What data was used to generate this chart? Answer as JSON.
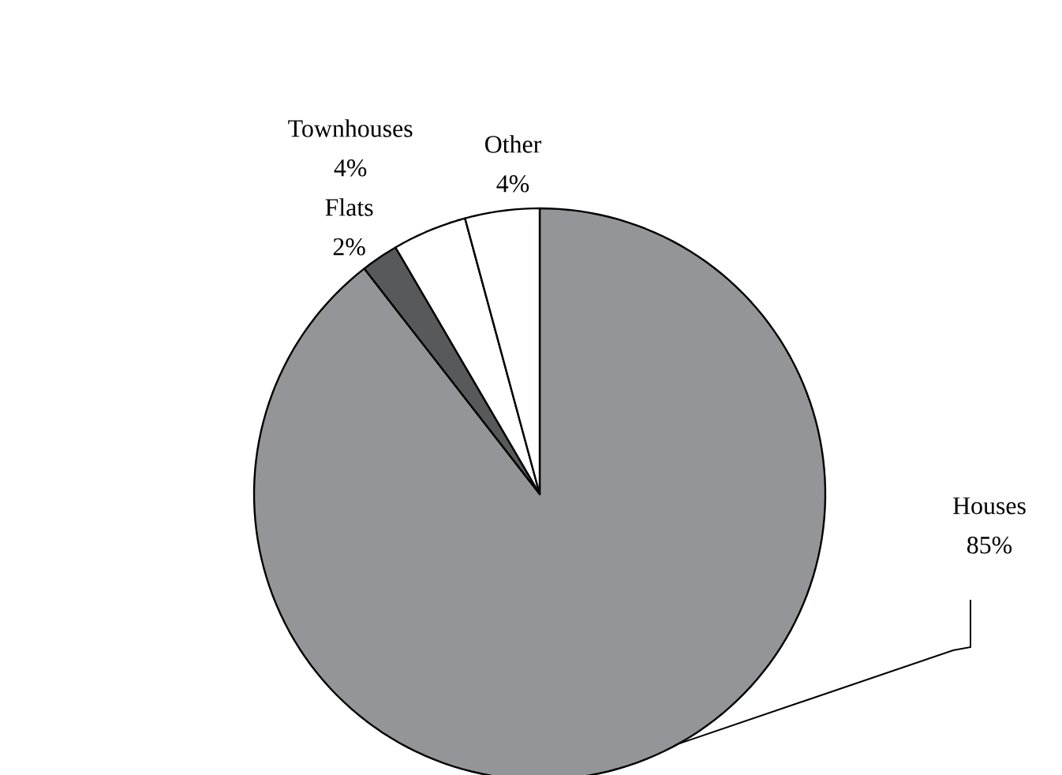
{
  "chart_data": {
    "type": "pie",
    "categories": [
      "Houses",
      "Flats",
      "Townhouses",
      "Other"
    ],
    "values": [
      85,
      2,
      4,
      4
    ],
    "value_labels": [
      "85%",
      "2%",
      "4%",
      "4%"
    ],
    "colors": [
      "#939598",
      "#58595b",
      "#ffffff",
      "#ffffff"
    ]
  }
}
